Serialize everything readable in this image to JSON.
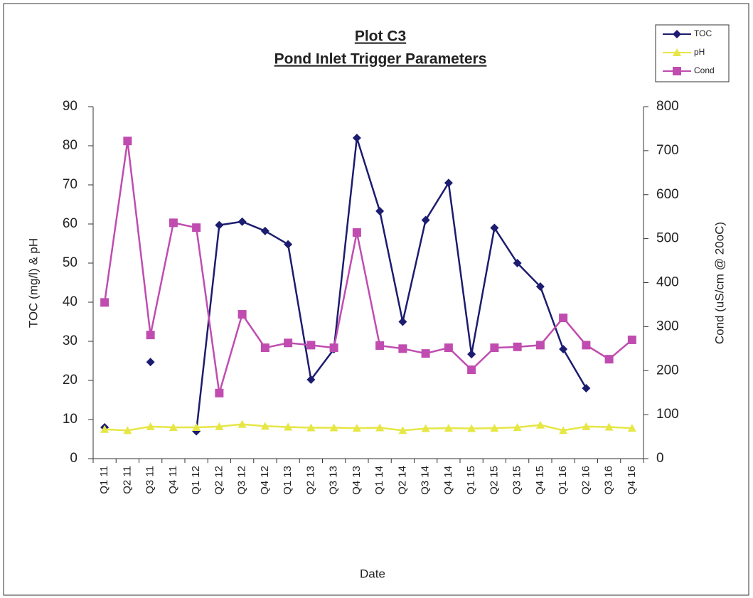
{
  "chart_data": {
    "type": "line",
    "title": "Plot C3",
    "subtitle": "Pond Inlet Trigger Parameters",
    "x_label": "Date",
    "y_label": "TOC (mg/l) & pH",
    "y2_label": "Cond (uS/cm @ 20oC)",
    "categories": [
      "Q1 11",
      "Q2 11",
      "Q3 11",
      "Q4 11",
      "Q1 12",
      "Q2 12",
      "Q3 12",
      "Q4 12",
      "Q1 13",
      "Q2 13",
      "Q3 13",
      "Q4 13",
      "Q1 14",
      "Q2 14",
      "Q3 14",
      "Q4 14",
      "Q1 15",
      "Q2 15",
      "Q3 15",
      "Q4 15",
      "Q1 16",
      "Q2 16",
      "Q3 16",
      "Q4 16"
    ],
    "series": [
      {
        "name": "TOC",
        "color": "#1c1c70",
        "marker": "diamond",
        "axis": "y",
        "values": [
          8,
          null,
          24.7,
          null,
          7,
          59.7,
          60.6,
          58.2,
          54.8,
          20.2,
          28,
          82,
          63.3,
          35,
          61,
          70.5,
          26.7,
          59,
          50,
          44,
          28,
          18,
          null,
          null
        ]
      },
      {
        "name": "pH",
        "color": "#e6e645",
        "marker": "triangle",
        "axis": "y",
        "values": [
          7.5,
          7.2,
          8.2,
          8,
          8,
          8.2,
          8.8,
          8.3,
          8.1,
          7.9,
          7.9,
          7.8,
          7.9,
          7.2,
          7.7,
          7.8,
          7.7,
          7.8,
          8,
          8.6,
          7.2,
          8.2,
          8.1,
          7.8
        ]
      },
      {
        "name": "Cond",
        "color": "#c04cb0",
        "marker": "square",
        "axis": "y2",
        "values": [
          355,
          722,
          281,
          536,
          525,
          149,
          328,
          252,
          263,
          258,
          252,
          514,
          257,
          250,
          239,
          252,
          202,
          252,
          254,
          258,
          320,
          258,
          226,
          270
        ]
      }
    ],
    "ylim": [
      0,
      90
    ],
    "yticks": [
      0,
      10,
      20,
      30,
      40,
      50,
      60,
      70,
      80,
      90
    ],
    "y2lim": [
      0,
      800
    ],
    "y2ticks": [
      0,
      100,
      200,
      300,
      400,
      500,
      600,
      700,
      800
    ],
    "grid": false,
    "legend": "top-right"
  }
}
